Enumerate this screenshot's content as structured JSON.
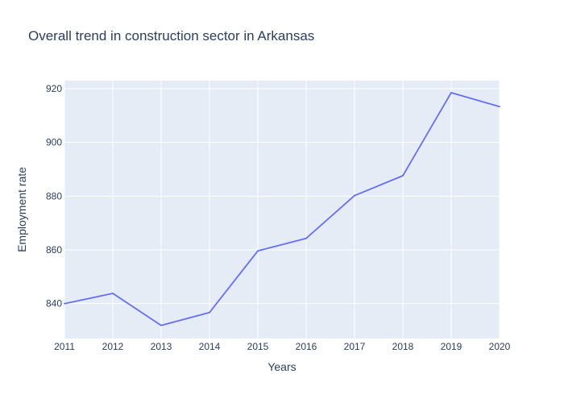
{
  "chart_data": {
    "type": "line",
    "title": "Overall trend in construction sector in Arkansas",
    "xlabel": "Years",
    "ylabel": "Employment rate",
    "x": [
      2011,
      2012,
      2013,
      2014,
      2015,
      2016,
      2017,
      2018,
      2019,
      2020
    ],
    "series": [
      {
        "values": [
          840.0,
          843.8,
          831.9,
          836.7,
          859.6,
          864.3,
          880.2,
          887.6,
          918.5,
          913.3
        ]
      }
    ],
    "xlim": [
      2011,
      2020
    ],
    "ylim": [
      827,
      923
    ],
    "xticks": [
      2011,
      2012,
      2013,
      2014,
      2015,
      2016,
      2017,
      2018,
      2019,
      2020
    ],
    "yticks": [
      840,
      860,
      880,
      900,
      920
    ],
    "grid": true,
    "legend": "none",
    "colors": {
      "line": "#636efa",
      "plot_background": "#e5ecf6",
      "grid": "#ffffff",
      "text": "#2a3f5f"
    }
  }
}
